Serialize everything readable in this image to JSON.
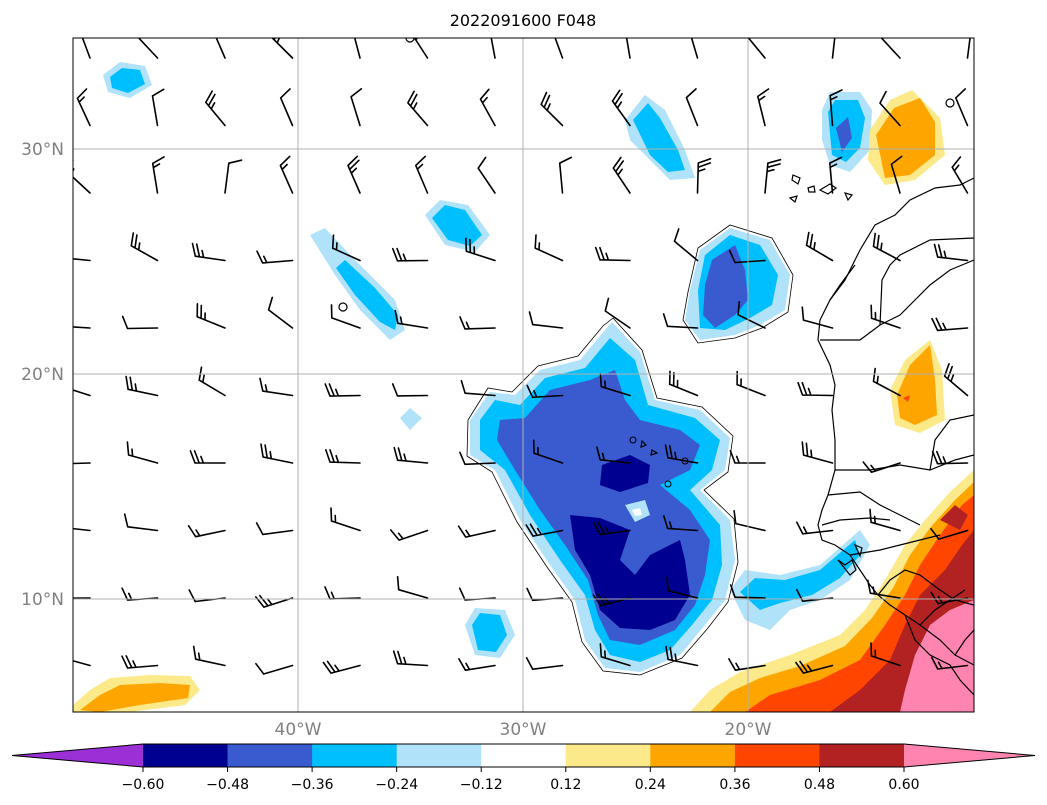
{
  "title": "2022091600 F048",
  "map": {
    "lat_labels": [
      "30°N",
      "20°N",
      "10°N"
    ],
    "lon_labels": [
      "40°W",
      "30°W",
      "20°W"
    ],
    "extent_lon": [
      -50,
      -10
    ],
    "extent_lat": [
      5,
      35
    ]
  },
  "colorbar": {
    "labels": [
      "−0.60",
      "−0.48",
      "−0.36",
      "−0.24",
      "−0.12",
      "0.12",
      "0.24",
      "0.36",
      "0.48",
      "0.60"
    ],
    "colors": [
      "#9b30d6",
      "#000090",
      "#3a5bcf",
      "#00bfff",
      "#b0e2fa",
      "#ffffff",
      "#fce98a",
      "#ffa500",
      "#ff4500",
      "#b22222",
      "#ff85b0",
      "#ff85b0"
    ],
    "extend": "both"
  },
  "colors": {
    "blue_darkest": "#000090",
    "blue_dark": "#3a5bcf",
    "blue_mid": "#00bfff",
    "blue_light": "#b0e2fa",
    "yellow_light": "#fce98a",
    "orange": "#ffa500",
    "orange_red": "#ff4500",
    "dark_red": "#b22222",
    "pink": "#ff85b0",
    "grid": "#b0b0b0",
    "tick_label": "#808080"
  }
}
